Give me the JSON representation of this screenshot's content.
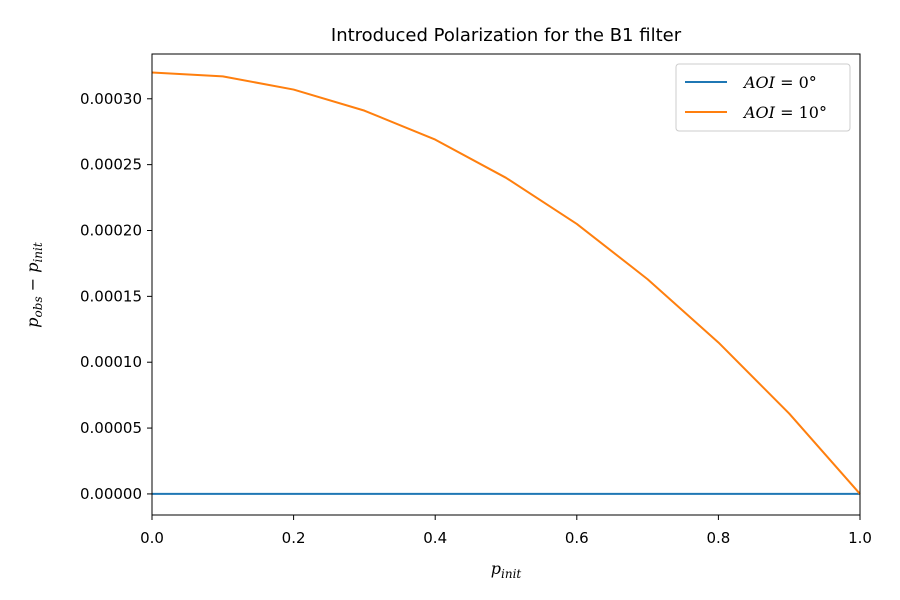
{
  "chart_data": {
    "type": "line",
    "title": "Introduced Polarization for the B1 filter",
    "xlabel": "p_init",
    "ylabel": "p_obs − p_init",
    "xlim": [
      0.0,
      1.0
    ],
    "ylim": [
      -1.6e-05,
      0.000334
    ],
    "xticks": [
      0.0,
      0.2,
      0.4,
      0.6,
      0.8,
      1.0
    ],
    "xtick_labels": [
      "0.0",
      "0.2",
      "0.4",
      "0.6",
      "0.8",
      "1.0"
    ],
    "yticks": [
      0.0,
      5e-05,
      0.0001,
      0.00015,
      0.0002,
      0.00025,
      0.0003
    ],
    "ytick_labels": [
      "0.00000",
      "0.00005",
      "0.00010",
      "0.00015",
      "0.00020",
      "0.00025",
      "0.00030"
    ],
    "grid": false,
    "legend_position": "top-right",
    "series": [
      {
        "name": "AOI = 0°",
        "color": "#1f77b4",
        "x": [
          0.0,
          0.1,
          0.2,
          0.3,
          0.4,
          0.5,
          0.6,
          0.7,
          0.8,
          0.9,
          1.0
        ],
        "y": [
          0.0,
          0.0,
          0.0,
          0.0,
          0.0,
          0.0,
          0.0,
          0.0,
          0.0,
          0.0,
          0.0
        ]
      },
      {
        "name": "AOI = 10°",
        "color": "#ff7f0e",
        "x": [
          0.0,
          0.1,
          0.2,
          0.3,
          0.4,
          0.5,
          0.6,
          0.7,
          0.8,
          0.9,
          1.0
        ],
        "y": [
          0.00032,
          0.000317,
          0.000307,
          0.000291,
          0.000269,
          0.00024,
          0.000205,
          0.000163,
          0.000115,
          6.1e-05,
          0.0
        ]
      }
    ]
  }
}
